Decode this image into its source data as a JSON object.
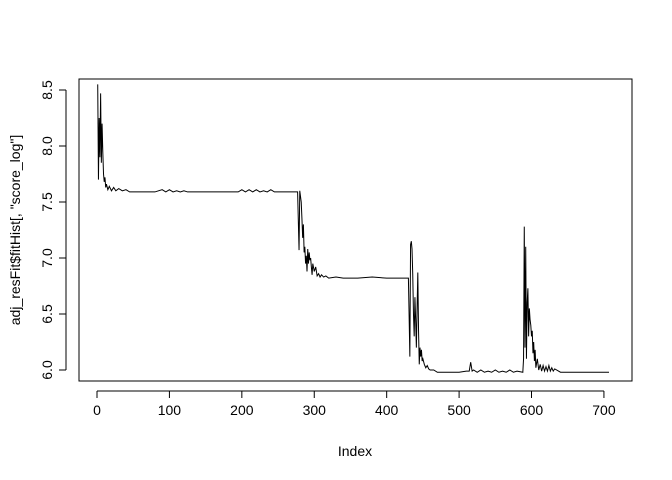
{
  "chart_data": {
    "type": "line",
    "title": "",
    "xlabel": "Index",
    "ylabel": "adj_resFit$fitHist[, \"score_log\"]",
    "xlim": [
      0,
      707
    ],
    "ylim": [
      5.98,
      8.55
    ],
    "x_ticks": [
      0,
      100,
      200,
      300,
      400,
      500,
      600,
      700
    ],
    "y_ticks": [
      6.0,
      6.5,
      7.0,
      7.5,
      8.0,
      8.5
    ],
    "x_tick_labels": [
      "0",
      "100",
      "200",
      "300",
      "400",
      "500",
      "600",
      "700"
    ],
    "y_tick_labels": [
      "6.0",
      "6.5",
      "7.0",
      "7.5",
      "8.0",
      "8.5"
    ],
    "grid": false,
    "legend": "none",
    "series": [
      {
        "points": [
          [
            1,
            8.55
          ],
          [
            2,
            7.7
          ],
          [
            3,
            8.25
          ],
          [
            4,
            7.9
          ],
          [
            5,
            8.47
          ],
          [
            6,
            7.85
          ],
          [
            7,
            8.2
          ],
          [
            8,
            7.95
          ],
          [
            9,
            7.75
          ],
          [
            10,
            7.68
          ],
          [
            11,
            7.72
          ],
          [
            12,
            7.63
          ],
          [
            13,
            7.66
          ],
          [
            15,
            7.61
          ],
          [
            17,
            7.64
          ],
          [
            20,
            7.6
          ],
          [
            23,
            7.63
          ],
          [
            26,
            7.6
          ],
          [
            30,
            7.62
          ],
          [
            35,
            7.6
          ],
          [
            40,
            7.61
          ],
          [
            45,
            7.59
          ],
          [
            80,
            7.59
          ],
          [
            90,
            7.61
          ],
          [
            95,
            7.59
          ],
          [
            100,
            7.61
          ],
          [
            105,
            7.59
          ],
          [
            110,
            7.6
          ],
          [
            115,
            7.59
          ],
          [
            120,
            7.6
          ],
          [
            125,
            7.59
          ],
          [
            195,
            7.59
          ],
          [
            200,
            7.61
          ],
          [
            205,
            7.59
          ],
          [
            210,
            7.61
          ],
          [
            215,
            7.59
          ],
          [
            220,
            7.61
          ],
          [
            225,
            7.59
          ],
          [
            230,
            7.6
          ],
          [
            235,
            7.59
          ],
          [
            240,
            7.61
          ],
          [
            245,
            7.59
          ],
          [
            277,
            7.59
          ],
          [
            279,
            7.07
          ],
          [
            280,
            7.6
          ],
          [
            282,
            7.5
          ],
          [
            283,
            7.35
          ],
          [
            284,
            7.18
          ],
          [
            285,
            7.3
          ],
          [
            286,
            7.05
          ],
          [
            287,
            7.1
          ],
          [
            288,
            6.95
          ],
          [
            289,
            7.02
          ],
          [
            290,
            6.88
          ],
          [
            291,
            7.08
          ],
          [
            292,
            6.95
          ],
          [
            293,
            7.05
          ],
          [
            294,
            6.98
          ],
          [
            295,
            7.0
          ],
          [
            296,
            6.92
          ],
          [
            297,
            6.85
          ],
          [
            298,
            6.95
          ],
          [
            300,
            6.88
          ],
          [
            302,
            6.92
          ],
          [
            304,
            6.84
          ],
          [
            306,
            6.86
          ],
          [
            308,
            6.83
          ],
          [
            310,
            6.85
          ],
          [
            313,
            6.83
          ],
          [
            316,
            6.84
          ],
          [
            320,
            6.82
          ],
          [
            330,
            6.83
          ],
          [
            340,
            6.82
          ],
          [
            360,
            6.82
          ],
          [
            380,
            6.83
          ],
          [
            400,
            6.82
          ],
          [
            420,
            6.82
          ],
          [
            430,
            6.82
          ],
          [
            431,
            6.48
          ],
          [
            432,
            6.12
          ],
          [
            433,
            7.12
          ],
          [
            434,
            7.15
          ],
          [
            435,
            7.08
          ],
          [
            436,
            6.85
          ],
          [
            437,
            6.5
          ],
          [
            438,
            6.3
          ],
          [
            439,
            6.65
          ],
          [
            440,
            6.45
          ],
          [
            441,
            6.2
          ],
          [
            442,
            6.55
          ],
          [
            443,
            6.87
          ],
          [
            444,
            6.35
          ],
          [
            445,
            6.05
          ],
          [
            446,
            6.2
          ],
          [
            447,
            6.12
          ],
          [
            448,
            6.18
          ],
          [
            449,
            6.08
          ],
          [
            450,
            6.1
          ],
          [
            452,
            6.05
          ],
          [
            454,
            6.02
          ],
          [
            456,
            6.04
          ],
          [
            458,
            6.01
          ],
          [
            460,
            6.0
          ],
          [
            465,
            6.0
          ],
          [
            470,
            5.98
          ],
          [
            480,
            5.98
          ],
          [
            500,
            5.98
          ],
          [
            510,
            5.99
          ],
          [
            514,
            5.99
          ],
          [
            516,
            6.07
          ],
          [
            518,
            5.99
          ],
          [
            520,
            6.0
          ],
          [
            525,
            5.98
          ],
          [
            530,
            6.0
          ],
          [
            535,
            5.98
          ],
          [
            540,
            5.99
          ],
          [
            545,
            5.98
          ],
          [
            550,
            6.0
          ],
          [
            555,
            5.98
          ],
          [
            560,
            5.99
          ],
          [
            565,
            5.98
          ],
          [
            570,
            6.0
          ],
          [
            575,
            5.98
          ],
          [
            580,
            5.99
          ],
          [
            588,
            5.98
          ],
          [
            589,
            6.1
          ],
          [
            590,
            7.28
          ],
          [
            591,
            6.2
          ],
          [
            592,
            7.1
          ],
          [
            593,
            6.1
          ],
          [
            594,
            6.6
          ],
          [
            595,
            6.73
          ],
          [
            596,
            6.3
          ],
          [
            597,
            6.55
          ],
          [
            598,
            6.45
          ],
          [
            599,
            6.4
          ],
          [
            600,
            6.3
          ],
          [
            601,
            6.35
          ],
          [
            602,
            6.15
          ],
          [
            603,
            6.25
          ],
          [
            604,
            6.08
          ],
          [
            605,
            6.18
          ],
          [
            606,
            6.02
          ],
          [
            608,
            6.1
          ],
          [
            610,
            6.0
          ],
          [
            612,
            6.05
          ],
          [
            614,
            5.99
          ],
          [
            616,
            6.04
          ],
          [
            618,
            5.99
          ],
          [
            620,
            6.03
          ],
          [
            622,
            5.99
          ],
          [
            624,
            6.04
          ],
          [
            626,
            5.99
          ],
          [
            628,
            6.02
          ],
          [
            630,
            5.99
          ],
          [
            632,
            6.01
          ],
          [
            640,
            5.98
          ],
          [
            660,
            5.98
          ],
          [
            680,
            5.98
          ],
          [
            700,
            5.98
          ],
          [
            707,
            5.98
          ]
        ]
      }
    ]
  }
}
